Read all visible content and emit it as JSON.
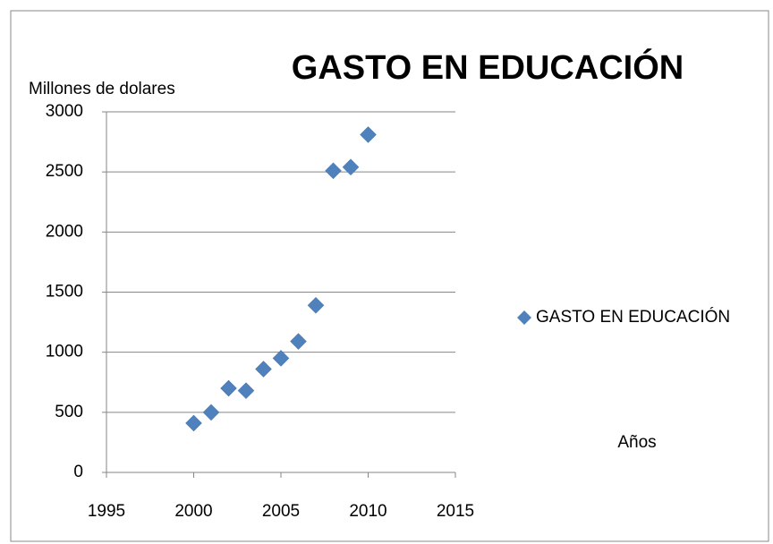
{
  "chart_data": {
    "type": "scatter",
    "title": "GASTO EN EDUCACIÓN",
    "y_label": "Millones de dolares",
    "x_label": "Años",
    "series": [
      {
        "name": "GASTO EN EDUCACIÓN",
        "color": "#4f81bd",
        "x": [
          2000,
          2001,
          2002,
          2003,
          2004,
          2005,
          2006,
          2007,
          2008,
          2009,
          2010
        ],
        "values": [
          410,
          500,
          700,
          680,
          860,
          950,
          1090,
          1390,
          2510,
          2540,
          2810
        ]
      }
    ],
    "xlim": [
      1995,
      2015
    ],
    "xticks": [
      1995,
      2000,
      2005,
      2010,
      2015
    ],
    "ylim": [
      0,
      3000
    ],
    "yticks": [
      0,
      500,
      1000,
      1500,
      2000,
      2500,
      3000
    ],
    "grid": true,
    "legend": "right"
  }
}
